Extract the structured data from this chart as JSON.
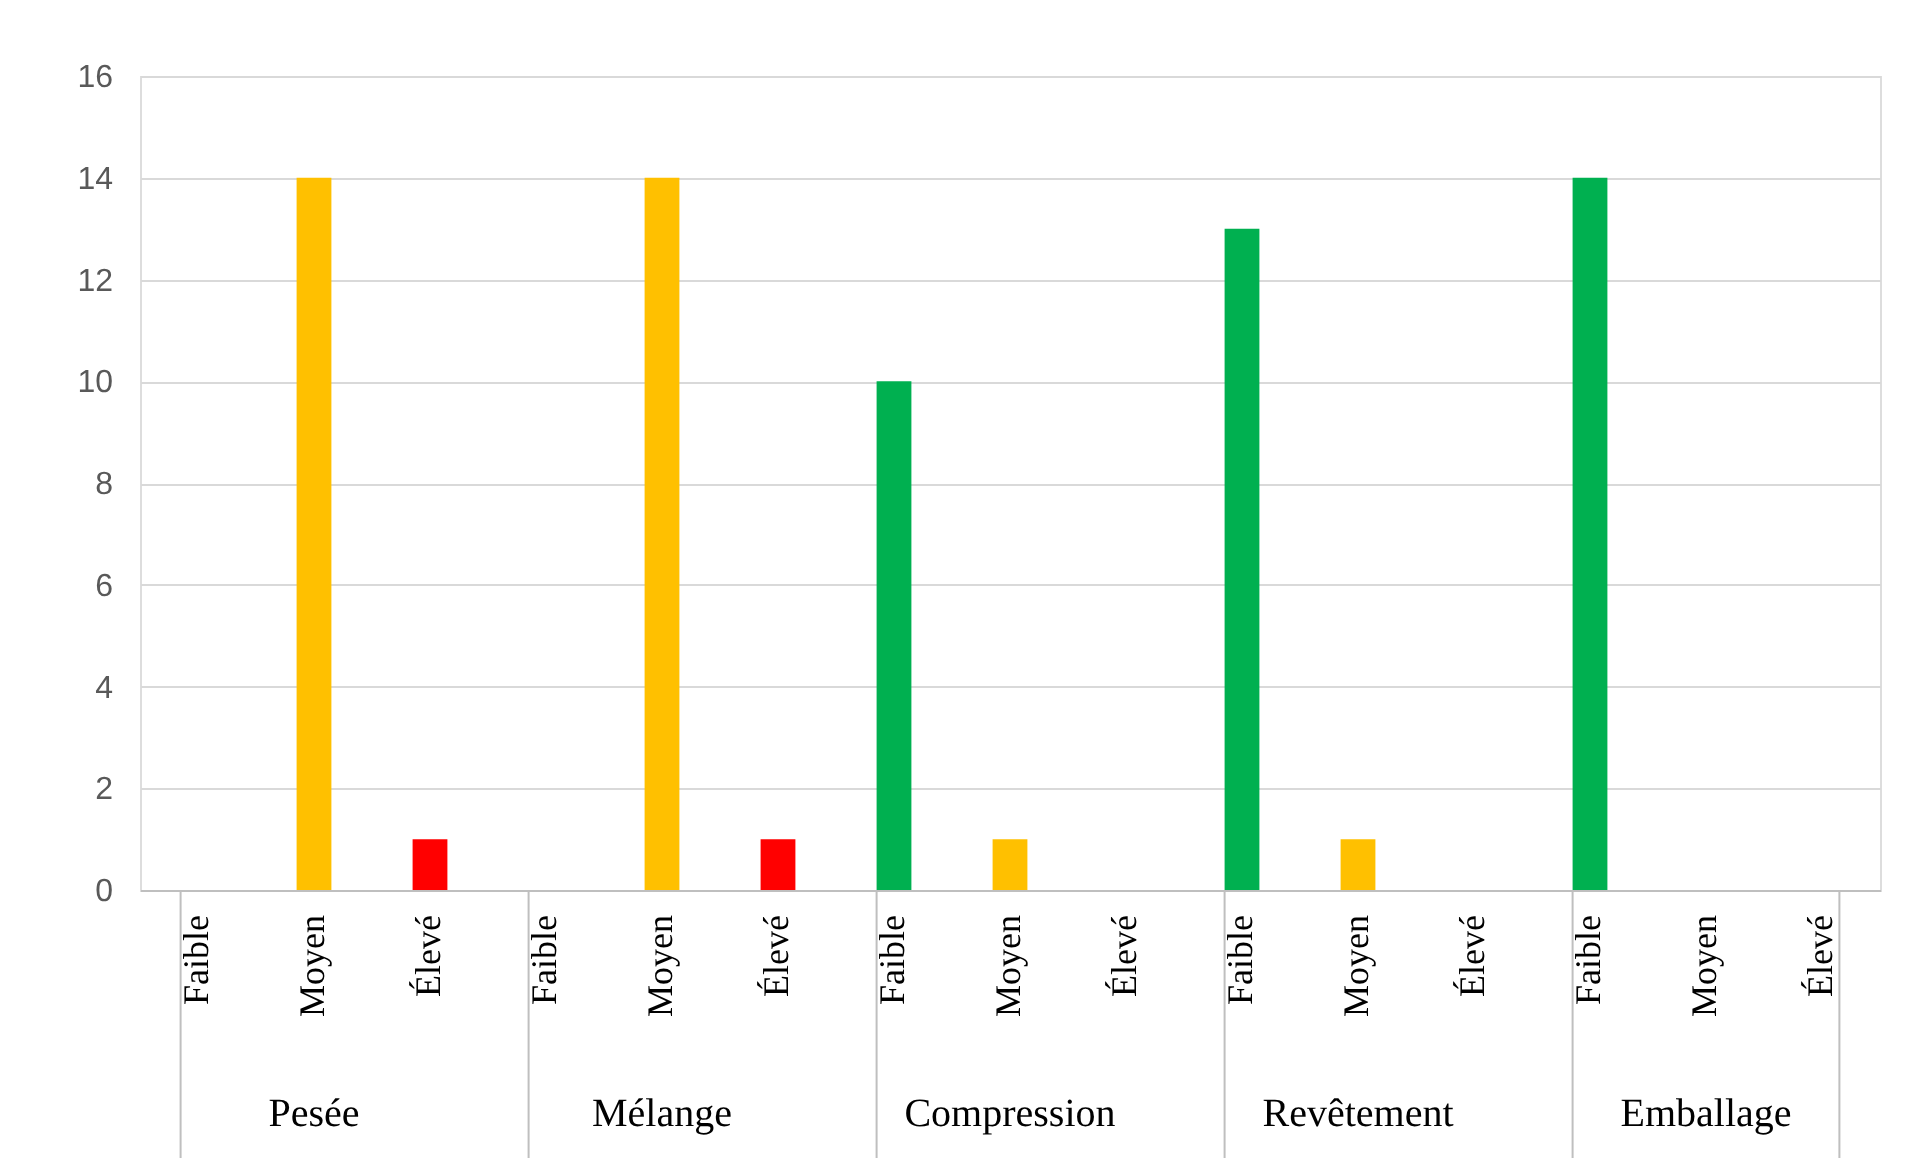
{
  "chart_data": {
    "type": "bar",
    "categories": [
      "Faible",
      "Moyen",
      "Élevé",
      "Faible",
      "Moyen",
      "Élevé",
      "Faible",
      "Moyen",
      "Élevé",
      "Faible",
      "Moyen",
      "Élevé",
      "Faible",
      "Moyen",
      "Élevé"
    ],
    "values": [
      0,
      14,
      1,
      0,
      14,
      1,
      10,
      1,
      0,
      13,
      1,
      0,
      14,
      0,
      0
    ],
    "colors": [
      "#00b050",
      "#ffc000",
      "#ff0000",
      "#00b050",
      "#ffc000",
      "#ff0000",
      "#00b050",
      "#ffc000",
      "#ff0000",
      "#00b050",
      "#ffc000",
      "#ff0000",
      "#00b050",
      "#ffc000",
      "#ff0000"
    ],
    "annotations": [
      "Pesée",
      "Mélange",
      "Compression",
      "Revêtement",
      "Emballage"
    ],
    "ylim": [
      0,
      16
    ],
    "yticks": [
      0,
      2,
      4,
      6,
      8,
      10,
      12,
      14,
      16
    ],
    "grid": "y"
  }
}
